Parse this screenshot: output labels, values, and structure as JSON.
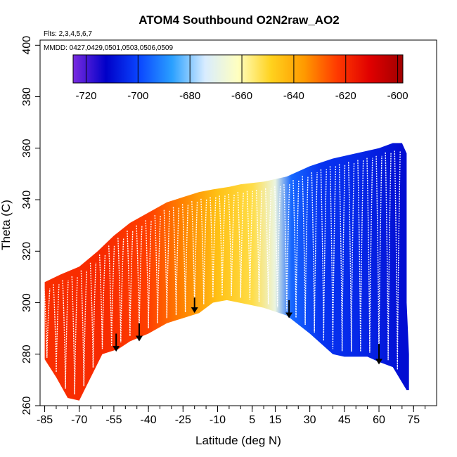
{
  "chart_data": {
    "type": "heatmap",
    "title": "ATOM4 Southbound O2N2raw_AO2",
    "notes": [
      "Flts: 2,3,4,5,6,7",
      "MMDD: 0427,0429,0501,0503,0506,0509"
    ],
    "xlabel": "Latitude (deg N)",
    "ylabel": "Theta (C)",
    "xlim": [
      -87,
      85
    ],
    "ylim": [
      260,
      402
    ],
    "x_ticks": [
      -85,
      -70,
      -55,
      -40,
      -25,
      -10,
      5,
      15,
      30,
      45,
      60,
      75
    ],
    "y_ticks": [
      260,
      280,
      300,
      320,
      340,
      360,
      380,
      400
    ],
    "colorbar": {
      "range": [
        -725,
        -598
      ],
      "ticks": [
        -720,
        -700,
        -680,
        -660,
        -640,
        -620,
        -600
      ],
      "colors": [
        "#7a2be0",
        "#0000c8",
        "#0a46ff",
        "#2aa0ff",
        "#d8ecff",
        "#ffffc0",
        "#ffd21e",
        "#ff9a00",
        "#ff3a00",
        "#e00000",
        "#a00000"
      ]
    },
    "top_boundary": [
      [
        -85,
        308
      ],
      [
        -78,
        311
      ],
      [
        -70,
        314
      ],
      [
        -62,
        320
      ],
      [
        -55,
        326
      ],
      [
        -48,
        331
      ],
      [
        -40,
        335
      ],
      [
        -32,
        339
      ],
      [
        -25,
        341
      ],
      [
        -18,
        343
      ],
      [
        -12,
        344
      ],
      [
        -5,
        345
      ],
      [
        0,
        346
      ],
      [
        10,
        347
      ],
      [
        20,
        349
      ],
      [
        30,
        353
      ],
      [
        40,
        356
      ],
      [
        50,
        358
      ],
      [
        60,
        360
      ],
      [
        66,
        362
      ],
      [
        70,
        362
      ],
      [
        72,
        358
      ],
      [
        72,
        300
      ],
      [
        73,
        280
      ],
      [
        73,
        266
      ]
    ],
    "bottom_boundary": [
      [
        -85,
        278
      ],
      [
        -80,
        271
      ],
      [
        -75,
        263
      ],
      [
        -70,
        262
      ],
      [
        -65,
        271
      ],
      [
        -60,
        280
      ],
      [
        -53,
        282
      ],
      [
        -48,
        285
      ],
      [
        -40,
        288
      ],
      [
        -32,
        292
      ],
      [
        -25,
        294
      ],
      [
        -18,
        296
      ],
      [
        -12,
        300
      ],
      [
        -6,
        301
      ],
      [
        5,
        299
      ],
      [
        10,
        298
      ],
      [
        20,
        295
      ],
      [
        30,
        288
      ],
      [
        40,
        280
      ],
      [
        45,
        279
      ],
      [
        55,
        279
      ],
      [
        60,
        277
      ],
      [
        66,
        275
      ],
      [
        72,
        266
      ]
    ],
    "field_stops": [
      {
        "lat": -85,
        "value": -621
      },
      {
        "lat": -60,
        "value": -620
      },
      {
        "lat": -40,
        "value": -624
      },
      {
        "lat": -25,
        "value": -633
      },
      {
        "lat": -10,
        "value": -645
      },
      {
        "lat": 5,
        "value": -652
      },
      {
        "lat": 15,
        "value": -668
      },
      {
        "lat": 22,
        "value": -695
      },
      {
        "lat": 35,
        "value": -703
      },
      {
        "lat": 50,
        "value": -705
      },
      {
        "lat": 60,
        "value": -707
      },
      {
        "lat": 70,
        "value": -710
      }
    ],
    "profiles_lat": [
      -84,
      -80,
      -76,
      -72,
      -68,
      -64,
      -60,
      -56,
      -52,
      -48,
      -44,
      -40,
      -36,
      -32,
      -28,
      -24,
      -20,
      -16,
      -12,
      -8,
      -4,
      0,
      4,
      8,
      12,
      16,
      20,
      24,
      28,
      32,
      36,
      40,
      44,
      48,
      52,
      56,
      60,
      64,
      68
    ],
    "arrows": [
      {
        "lat": -54,
        "theta_top": 288,
        "theta_tip": 281
      },
      {
        "lat": -44,
        "theta_top": 292,
        "theta_tip": 285
      },
      {
        "lat": -20,
        "theta_top": 302,
        "theta_tip": 296
      },
      {
        "lat": 21,
        "theta_top": 301,
        "theta_tip": 294
      },
      {
        "lat": 60,
        "theta_top": 284,
        "theta_tip": 276
      }
    ]
  }
}
